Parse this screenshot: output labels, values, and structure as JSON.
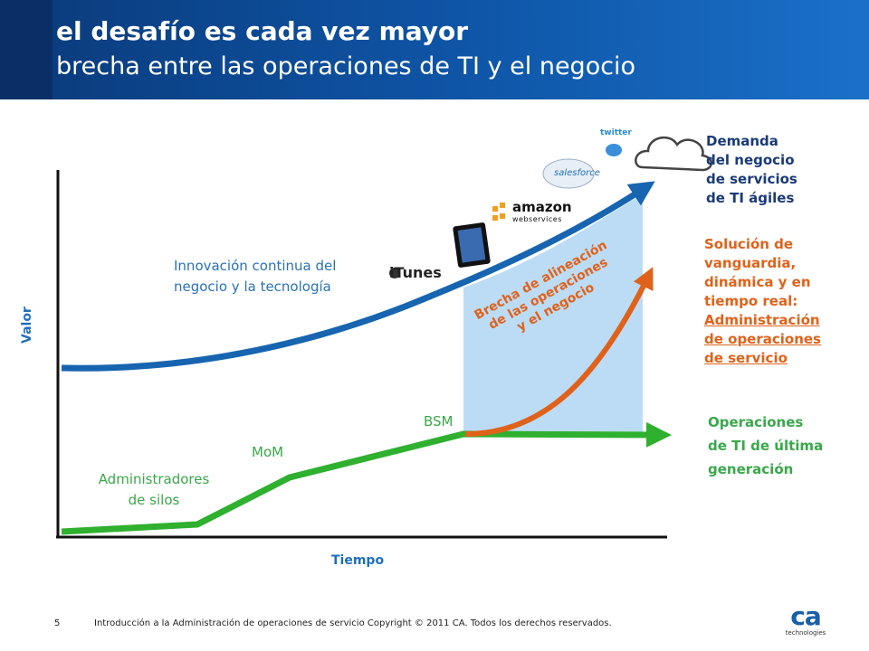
{
  "header": {
    "title": "el desafío es cada vez mayor",
    "subtitle": "brecha entre las operaciones de TI y el negocio"
  },
  "axes": {
    "y_label": "Valor",
    "x_label": "Tiempo"
  },
  "labels": {
    "blue_curve": [
      "Innovación continua del",
      "negocio y la tecnología"
    ],
    "silos": [
      "Administradores",
      "de silos"
    ],
    "mom": "MoM",
    "bsm": "BSM",
    "gap": [
      "Brecha de alineación",
      "de las operaciones",
      "y el negocio"
    ]
  },
  "right_labels": {
    "demand": [
      "Demanda",
      "del negocio",
      "de servicios",
      "de TI ágiles"
    ],
    "solution": [
      "Solución de",
      "vanguardia,",
      "dinámica y en",
      "tiempo real:"
    ],
    "solution_link": [
      "Administración",
      "de operaciones",
      "de servicio"
    ],
    "operations": [
      "Operaciones",
      "de TI de última",
      "generación"
    ]
  },
  "logos": {
    "itunes": "iTunes",
    "amazon": "amazon",
    "amazon_sub": "webservices",
    "salesforce": "salesforce",
    "twitter": "twitter"
  },
  "footer": {
    "page_number": "5",
    "text": "Introducción a la Administración de operaciones de servicio   Copyright © 2011 CA. Todos los derechos reservados."
  },
  "brand": {
    "logo": "ca",
    "tagline": "technologies"
  },
  "colors": {
    "header": "#0f56a8",
    "blue_curve": "#1765b0",
    "green_curve": "#2fb02f",
    "orange_curve": "#e0621a",
    "gap_fill": "#bcdcf5"
  }
}
